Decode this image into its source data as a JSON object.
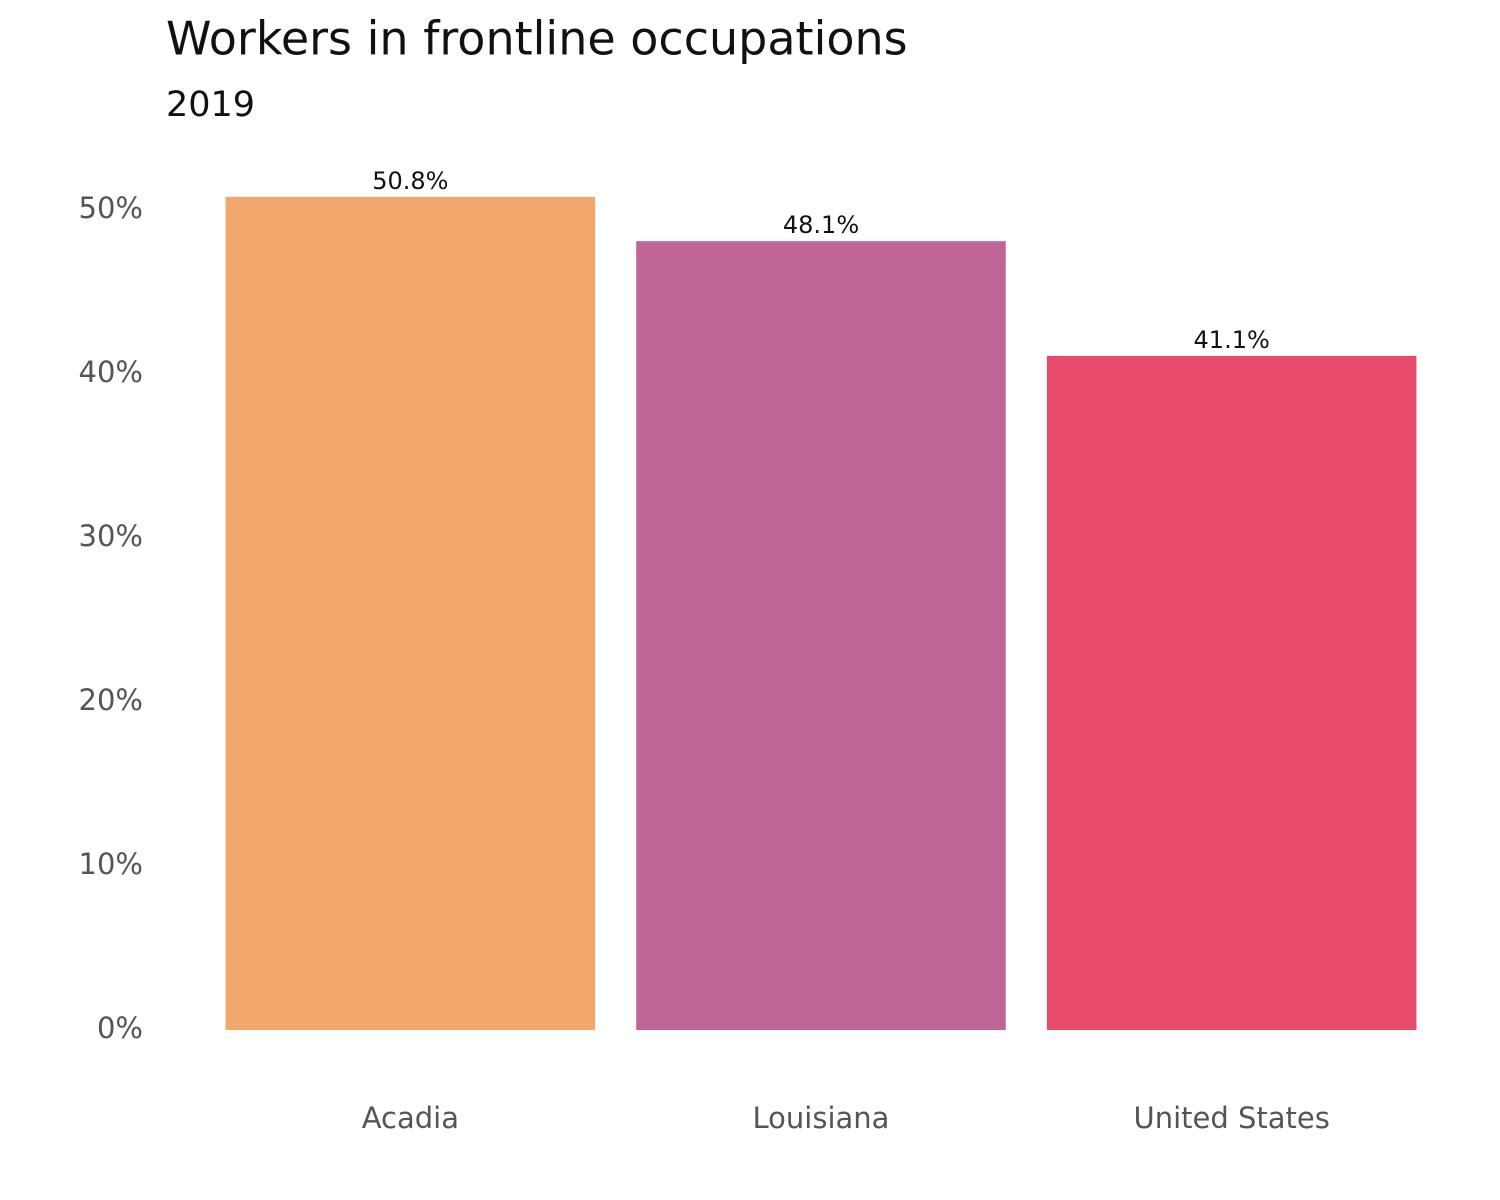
{
  "chart_data": {
    "type": "bar",
    "title": "Workers in frontline occupations",
    "subtitle": "2019",
    "categories": [
      "Acadia",
      "Louisiana",
      "United States"
    ],
    "values": [
      50.8,
      48.1,
      41.1
    ],
    "value_labels": [
      "50.8%",
      "48.1%",
      "41.1%"
    ],
    "colors": [
      "#f2a76d",
      "#c06598",
      "#e84b69"
    ],
    "ylim": [
      0,
      52
    ],
    "yticks": [
      {
        "value": 0,
        "label": "0%"
      },
      {
        "value": 10,
        "label": "10%"
      },
      {
        "value": 20,
        "label": "20%"
      },
      {
        "value": 30,
        "label": "30%"
      },
      {
        "value": 40,
        "label": "40%"
      },
      {
        "value": 50,
        "label": "50%"
      }
    ],
    "grid": false
  }
}
